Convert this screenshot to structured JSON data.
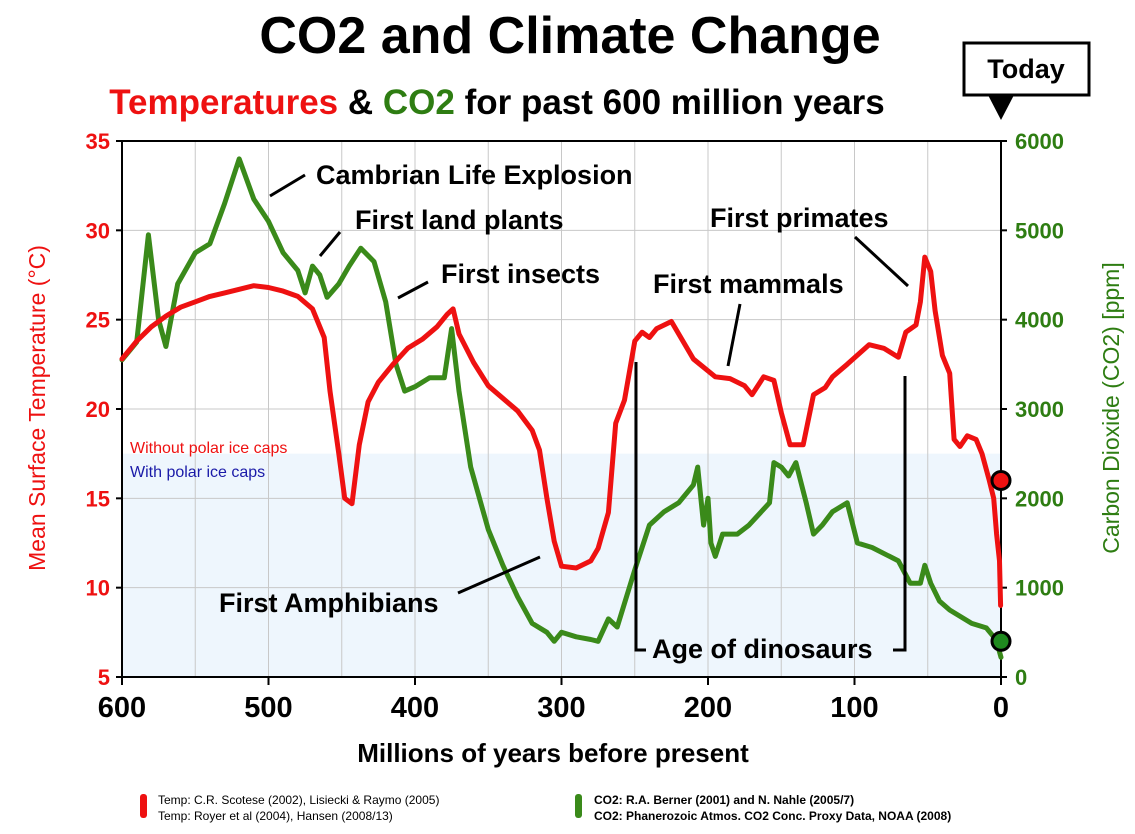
{
  "chart_data": {
    "type": "line",
    "title": "CO2 and Climate Change",
    "subtitle": {
      "part1": "Temperatures",
      "part2": " & ",
      "part3": "CO2",
      "part4": " for past 600 million years"
    },
    "xlabel": "Millions of years before present",
    "ylabel_left": "Mean Surface Temperature (°C)",
    "ylabel_right": "Carbon Dioxide (CO2) [ppm]",
    "xlim": [
      600,
      0
    ],
    "ylim_left": [
      5,
      35
    ],
    "ylim_right": [
      0,
      6000
    ],
    "x_ticks": [
      "600",
      "500",
      "400",
      "300",
      "200",
      "100",
      "0"
    ],
    "y_ticks_left": [
      "35",
      "30",
      "25",
      "20",
      "15",
      "10",
      "5"
    ],
    "y_ticks_right": [
      "6000",
      "5000",
      "4000",
      "3000",
      "2000",
      "1000",
      "0"
    ],
    "today_label": "Today",
    "ice_band": {
      "temp_low": 5,
      "temp_high": 17.5
    },
    "ice_legend": {
      "without": "Without polar ice caps",
      "with": "With polar ice caps"
    },
    "colors": {
      "temperature": "#ee1111",
      "co2": "#3a8a1a",
      "co2_label": "#2e7d12",
      "ice_band": "#eef6fd",
      "grid": "#c8c8c8",
      "with_ice_text": "#1a1aa8"
    },
    "series": [
      {
        "name": "Temperature",
        "axis": "left",
        "points": [
          [
            600,
            22.8
          ],
          [
            590,
            23.8
          ],
          [
            580,
            24.6
          ],
          [
            570,
            25.2
          ],
          [
            560,
            25.7
          ],
          [
            550,
            26.0
          ],
          [
            540,
            26.3
          ],
          [
            530,
            26.5
          ],
          [
            520,
            26.7
          ],
          [
            510,
            26.9
          ],
          [
            500,
            26.8
          ],
          [
            490,
            26.6
          ],
          [
            480,
            26.3
          ],
          [
            470,
            25.6
          ],
          [
            462,
            24.0
          ],
          [
            458,
            21.0
          ],
          [
            452,
            17.5
          ],
          [
            448,
            15.0
          ],
          [
            443,
            14.7
          ],
          [
            438,
            18.0
          ],
          [
            432,
            20.4
          ],
          [
            425,
            21.5
          ],
          [
            415,
            22.5
          ],
          [
            405,
            23.4
          ],
          [
            395,
            23.9
          ],
          [
            385,
            24.6
          ],
          [
            378,
            25.3
          ],
          [
            374,
            25.6
          ],
          [
            370,
            24.2
          ],
          [
            360,
            22.6
          ],
          [
            350,
            21.3
          ],
          [
            340,
            20.6
          ],
          [
            330,
            19.9
          ],
          [
            320,
            18.8
          ],
          [
            315,
            17.7
          ],
          [
            310,
            15.0
          ],
          [
            305,
            12.6
          ],
          [
            300,
            11.2
          ],
          [
            290,
            11.1
          ],
          [
            280,
            11.5
          ],
          [
            275,
            12.2
          ],
          [
            268,
            14.2
          ],
          [
            263,
            19.2
          ],
          [
            257,
            20.5
          ],
          [
            250,
            23.8
          ],
          [
            245,
            24.3
          ],
          [
            240,
            24.0
          ],
          [
            235,
            24.5
          ],
          [
            225,
            24.9
          ],
          [
            210,
            22.8
          ],
          [
            195,
            21.8
          ],
          [
            185,
            21.7
          ],
          [
            175,
            21.3
          ],
          [
            170,
            20.8
          ],
          [
            162,
            21.8
          ],
          [
            155,
            21.6
          ],
          [
            150,
            19.8
          ],
          [
            144,
            18.0
          ],
          [
            135,
            18.0
          ],
          [
            128,
            20.8
          ],
          [
            120,
            21.2
          ],
          [
            115,
            21.8
          ],
          [
            105,
            22.5
          ],
          [
            90,
            23.6
          ],
          [
            80,
            23.4
          ],
          [
            70,
            22.9
          ],
          [
            65,
            24.3
          ],
          [
            58,
            24.7
          ],
          [
            55,
            26.0
          ],
          [
            52,
            28.5
          ],
          [
            48,
            27.7
          ],
          [
            45,
            25.5
          ],
          [
            40,
            23.0
          ],
          [
            35,
            22.0
          ],
          [
            32,
            18.3
          ],
          [
            28,
            17.9
          ],
          [
            23,
            18.5
          ],
          [
            17,
            18.3
          ],
          [
            13,
            17.5
          ],
          [
            8,
            16.0
          ],
          [
            5,
            15.0
          ],
          [
            3,
            13.0
          ],
          [
            1,
            11.5
          ],
          [
            0.3,
            9.0
          ]
        ]
      },
      {
        "name": "CO2",
        "axis": "right",
        "points": [
          [
            600,
            3550
          ],
          [
            590,
            3750
          ],
          [
            582,
            4950
          ],
          [
            575,
            4000
          ],
          [
            570,
            3700
          ],
          [
            562,
            4400
          ],
          [
            550,
            4750
          ],
          [
            540,
            4850
          ],
          [
            530,
            5300
          ],
          [
            520,
            5800
          ],
          [
            510,
            5350
          ],
          [
            500,
            5100
          ],
          [
            490,
            4750
          ],
          [
            480,
            4550
          ],
          [
            475,
            4300
          ],
          [
            470,
            4600
          ],
          [
            465,
            4500
          ],
          [
            460,
            4250
          ],
          [
            452,
            4400
          ],
          [
            445,
            4600
          ],
          [
            437,
            4800
          ],
          [
            428,
            4650
          ],
          [
            420,
            4200
          ],
          [
            413,
            3500
          ],
          [
            407,
            3200
          ],
          [
            400,
            3250
          ],
          [
            390,
            3350
          ],
          [
            380,
            3350
          ],
          [
            375,
            3900
          ],
          [
            370,
            3200
          ],
          [
            362,
            2350
          ],
          [
            350,
            1650
          ],
          [
            340,
            1250
          ],
          [
            330,
            900
          ],
          [
            320,
            600
          ],
          [
            310,
            500
          ],
          [
            305,
            400
          ],
          [
            300,
            500
          ],
          [
            290,
            450
          ],
          [
            280,
            420
          ],
          [
            275,
            400
          ],
          [
            268,
            650
          ],
          [
            262,
            560
          ],
          [
            250,
            1200
          ],
          [
            240,
            1700
          ],
          [
            230,
            1850
          ],
          [
            220,
            1950
          ],
          [
            210,
            2150
          ],
          [
            207,
            2350
          ],
          [
            203,
            1700
          ],
          [
            200,
            2000
          ],
          [
            198,
            1500
          ],
          [
            195,
            1350
          ],
          [
            190,
            1600
          ],
          [
            180,
            1600
          ],
          [
            172,
            1700
          ],
          [
            158,
            1950
          ],
          [
            155,
            2400
          ],
          [
            150,
            2350
          ],
          [
            145,
            2250
          ],
          [
            140,
            2400
          ],
          [
            133,
            1950
          ],
          [
            128,
            1600
          ],
          [
            122,
            1700
          ],
          [
            115,
            1850
          ],
          [
            105,
            1950
          ],
          [
            98,
            1500
          ],
          [
            88,
            1450
          ],
          [
            70,
            1300
          ],
          [
            62,
            1050
          ],
          [
            55,
            1050
          ],
          [
            52,
            1250
          ],
          [
            48,
            1050
          ],
          [
            42,
            850
          ],
          [
            35,
            750
          ],
          [
            20,
            600
          ],
          [
            10,
            550
          ],
          [
            5,
            450
          ],
          [
            3,
            400
          ],
          [
            0,
            220
          ]
        ]
      }
    ],
    "markers": [
      {
        "name": "temp-today",
        "axis": "left",
        "x": 0,
        "y": 16
      },
      {
        "name": "co2-today",
        "axis": "right",
        "x": 0,
        "y": 400
      }
    ],
    "annotations": [
      "Cambrian Life Explosion",
      "First land plants",
      "First insects",
      "First primates",
      "First mammals",
      "First Amphibians",
      "Age of dinosaurs"
    ],
    "sources": {
      "temp1": "Temp: C.R. Scotese (2002), Lisiecki & Raymo (2005)",
      "temp2": "Temp: Royer et al (2004), Hansen (2008/13)",
      "co21": "CO2: R.A. Berner (2001) and N. Nahle (2005/7)",
      "co22": "CO2: Phanerozoic Atmos. CO2 Conc. Proxy Data, NOAA (2008)"
    }
  }
}
